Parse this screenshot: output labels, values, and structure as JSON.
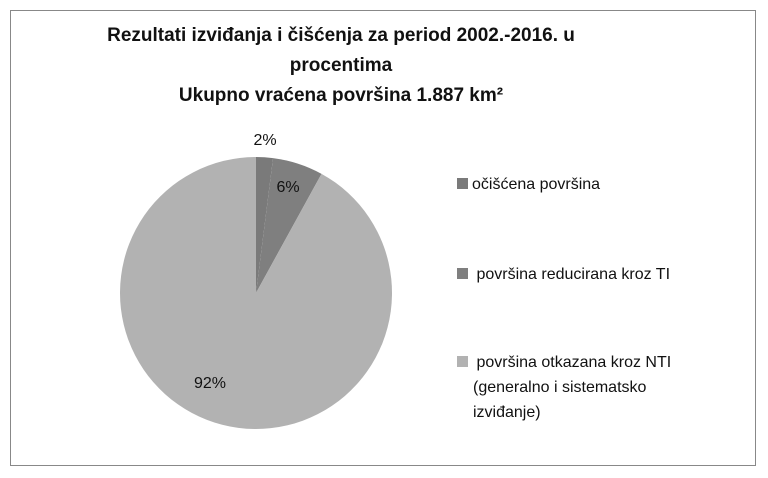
{
  "chart_data": {
    "type": "pie",
    "title": [
      "Rezultati izviđanja i čišćenja za period 2002.-2016. u",
      "procentima",
      "Ukupno vraćena površina 1.887 km²"
    ],
    "slices": [
      {
        "label": "očišćena površina",
        "value": 2,
        "data_label": "2%",
        "color": "#7a7a7a"
      },
      {
        "label": " površina reducirana kroz TI",
        "value": 6,
        "data_label": "6%",
        "color": "#7f7f7f"
      },
      {
        "label": " površina otkazana kroz NTI (generalno i sistematsko izviđanje)",
        "value": 92,
        "data_label": "92%",
        "color": "#b2b2b2"
      }
    ],
    "legend_position": "right",
    "legend_lines": [
      [
        "očišćena površina"
      ],
      [
        " površina reducirana kroz TI"
      ],
      [
        " površina otkazana kroz NTI",
        "(generalno i sistematsko",
        "izviđanje)"
      ]
    ]
  }
}
